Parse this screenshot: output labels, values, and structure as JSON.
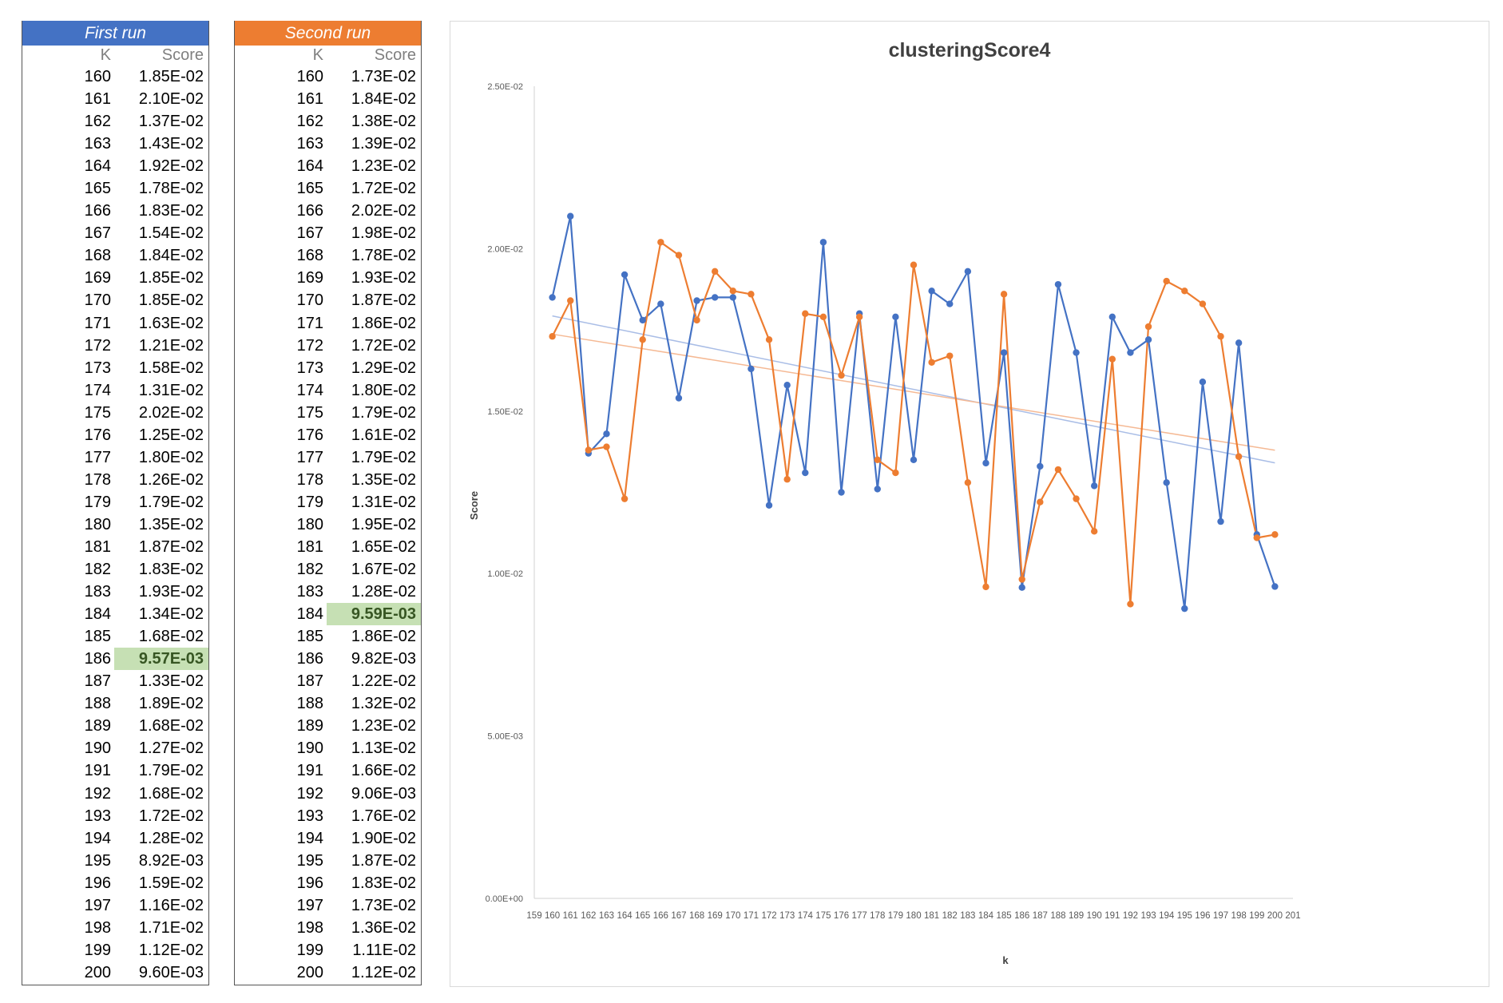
{
  "first_run": {
    "title": "First run",
    "k_header": "K",
    "score_header": "Score",
    "highlight_index": 26,
    "rows": [
      {
        "k": "160",
        "score": "1.85E-02"
      },
      {
        "k": "161",
        "score": "2.10E-02"
      },
      {
        "k": "162",
        "score": "1.37E-02"
      },
      {
        "k": "163",
        "score": "1.43E-02"
      },
      {
        "k": "164",
        "score": "1.92E-02"
      },
      {
        "k": "165",
        "score": "1.78E-02"
      },
      {
        "k": "166",
        "score": "1.83E-02"
      },
      {
        "k": "167",
        "score": "1.54E-02"
      },
      {
        "k": "168",
        "score": "1.84E-02"
      },
      {
        "k": "169",
        "score": "1.85E-02"
      },
      {
        "k": "170",
        "score": "1.85E-02"
      },
      {
        "k": "171",
        "score": "1.63E-02"
      },
      {
        "k": "172",
        "score": "1.21E-02"
      },
      {
        "k": "173",
        "score": "1.58E-02"
      },
      {
        "k": "174",
        "score": "1.31E-02"
      },
      {
        "k": "175",
        "score": "2.02E-02"
      },
      {
        "k": "176",
        "score": "1.25E-02"
      },
      {
        "k": "177",
        "score": "1.80E-02"
      },
      {
        "k": "178",
        "score": "1.26E-02"
      },
      {
        "k": "179",
        "score": "1.79E-02"
      },
      {
        "k": "180",
        "score": "1.35E-02"
      },
      {
        "k": "181",
        "score": "1.87E-02"
      },
      {
        "k": "182",
        "score": "1.83E-02"
      },
      {
        "k": "183",
        "score": "1.93E-02"
      },
      {
        "k": "184",
        "score": "1.34E-02"
      },
      {
        "k": "185",
        "score": "1.68E-02"
      },
      {
        "k": "186",
        "score": "9.57E-03"
      },
      {
        "k": "187",
        "score": "1.33E-02"
      },
      {
        "k": "188",
        "score": "1.89E-02"
      },
      {
        "k": "189",
        "score": "1.68E-02"
      },
      {
        "k": "190",
        "score": "1.27E-02"
      },
      {
        "k": "191",
        "score": "1.79E-02"
      },
      {
        "k": "192",
        "score": "1.68E-02"
      },
      {
        "k": "193",
        "score": "1.72E-02"
      },
      {
        "k": "194",
        "score": "1.28E-02"
      },
      {
        "k": "195",
        "score": "8.92E-03"
      },
      {
        "k": "196",
        "score": "1.59E-02"
      },
      {
        "k": "197",
        "score": "1.16E-02"
      },
      {
        "k": "198",
        "score": "1.71E-02"
      },
      {
        "k": "199",
        "score": "1.12E-02"
      },
      {
        "k": "200",
        "score": "9.60E-03"
      }
    ]
  },
  "second_run": {
    "title": "Second run",
    "k_header": "K",
    "score_header": "Score",
    "highlight_index": 24,
    "rows": [
      {
        "k": "160",
        "score": "1.73E-02"
      },
      {
        "k": "161",
        "score": "1.84E-02"
      },
      {
        "k": "162",
        "score": "1.38E-02"
      },
      {
        "k": "163",
        "score": "1.39E-02"
      },
      {
        "k": "164",
        "score": "1.23E-02"
      },
      {
        "k": "165",
        "score": "1.72E-02"
      },
      {
        "k": "166",
        "score": "2.02E-02"
      },
      {
        "k": "167",
        "score": "1.98E-02"
      },
      {
        "k": "168",
        "score": "1.78E-02"
      },
      {
        "k": "169",
        "score": "1.93E-02"
      },
      {
        "k": "170",
        "score": "1.87E-02"
      },
      {
        "k": "171",
        "score": "1.86E-02"
      },
      {
        "k": "172",
        "score": "1.72E-02"
      },
      {
        "k": "173",
        "score": "1.29E-02"
      },
      {
        "k": "174",
        "score": "1.80E-02"
      },
      {
        "k": "175",
        "score": "1.79E-02"
      },
      {
        "k": "176",
        "score": "1.61E-02"
      },
      {
        "k": "177",
        "score": "1.79E-02"
      },
      {
        "k": "178",
        "score": "1.35E-02"
      },
      {
        "k": "179",
        "score": "1.31E-02"
      },
      {
        "k": "180",
        "score": "1.95E-02"
      },
      {
        "k": "181",
        "score": "1.65E-02"
      },
      {
        "k": "182",
        "score": "1.67E-02"
      },
      {
        "k": "183",
        "score": "1.28E-02"
      },
      {
        "k": "184",
        "score": "9.59E-03"
      },
      {
        "k": "185",
        "score": "1.86E-02"
      },
      {
        "k": "186",
        "score": "9.82E-03"
      },
      {
        "k": "187",
        "score": "1.22E-02"
      },
      {
        "k": "188",
        "score": "1.32E-02"
      },
      {
        "k": "189",
        "score": "1.23E-02"
      },
      {
        "k": "190",
        "score": "1.13E-02"
      },
      {
        "k": "191",
        "score": "1.66E-02"
      },
      {
        "k": "192",
        "score": "9.06E-03"
      },
      {
        "k": "193",
        "score": "1.76E-02"
      },
      {
        "k": "194",
        "score": "1.90E-02"
      },
      {
        "k": "195",
        "score": "1.87E-02"
      },
      {
        "k": "196",
        "score": "1.83E-02"
      },
      {
        "k": "197",
        "score": "1.73E-02"
      },
      {
        "k": "198",
        "score": "1.36E-02"
      },
      {
        "k": "199",
        "score": "1.11E-02"
      },
      {
        "k": "200",
        "score": "1.12E-02"
      }
    ]
  },
  "chart_data": {
    "type": "line",
    "title": "clusteringScore4",
    "xlabel": "k",
    "ylabel": "Score",
    "xlim": [
      159,
      201
    ],
    "ylim": [
      0,
      0.025
    ],
    "x_ticks": [
      "159",
      "160",
      "161",
      "162",
      "163",
      "164",
      "165",
      "166",
      "167",
      "168",
      "169",
      "170",
      "171",
      "172",
      "173",
      "174",
      "175",
      "176",
      "177",
      "178",
      "179",
      "180",
      "181",
      "182",
      "183",
      "184",
      "185",
      "186",
      "187",
      "188",
      "189",
      "190",
      "191",
      "192",
      "193",
      "194",
      "195",
      "196",
      "197",
      "198",
      "199",
      "200",
      "201"
    ],
    "y_ticks": [
      {
        "value": 0,
        "label": "0.00E+00"
      },
      {
        "value": 0.005,
        "label": "5.00E-03"
      },
      {
        "value": 0.01,
        "label": "1.00E-02"
      },
      {
        "value": 0.015,
        "label": "1.50E-02"
      },
      {
        "value": 0.02,
        "label": "2.00E-02"
      },
      {
        "value": 0.025,
        "label": "2.50E-02"
      }
    ],
    "grid": false,
    "trendlines": "linear",
    "x": [
      160,
      161,
      162,
      163,
      164,
      165,
      166,
      167,
      168,
      169,
      170,
      171,
      172,
      173,
      174,
      175,
      176,
      177,
      178,
      179,
      180,
      181,
      182,
      183,
      184,
      185,
      186,
      187,
      188,
      189,
      190,
      191,
      192,
      193,
      194,
      195,
      196,
      197,
      198,
      199,
      200
    ],
    "series": [
      {
        "color": "#4472c4",
        "trend_color": "#a9bde6",
        "values": [
          0.0185,
          0.021,
          0.0137,
          0.0143,
          0.0192,
          0.0178,
          0.0183,
          0.0154,
          0.0184,
          0.0185,
          0.0185,
          0.0163,
          0.0121,
          0.0158,
          0.0131,
          0.0202,
          0.0125,
          0.018,
          0.0126,
          0.0179,
          0.0135,
          0.0187,
          0.0183,
          0.0193,
          0.0134,
          0.0168,
          0.00957,
          0.0133,
          0.0189,
          0.0168,
          0.0127,
          0.0179,
          0.0168,
          0.0172,
          0.0128,
          0.00892,
          0.0159,
          0.0116,
          0.0171,
          0.0112,
          0.0096
        ]
      },
      {
        "color": "#ed7d31",
        "trend_color": "#f5b994",
        "values": [
          0.0173,
          0.0184,
          0.0138,
          0.0139,
          0.0123,
          0.0172,
          0.0202,
          0.0198,
          0.0178,
          0.0193,
          0.0187,
          0.0186,
          0.0172,
          0.0129,
          0.018,
          0.0179,
          0.0161,
          0.0179,
          0.0135,
          0.0131,
          0.0195,
          0.0165,
          0.0167,
          0.0128,
          0.00959,
          0.0186,
          0.00982,
          0.0122,
          0.0132,
          0.0123,
          0.0113,
          0.0166,
          0.00906,
          0.0176,
          0.019,
          0.0187,
          0.0183,
          0.0173,
          0.0136,
          0.0111,
          0.0112
        ]
      }
    ]
  }
}
